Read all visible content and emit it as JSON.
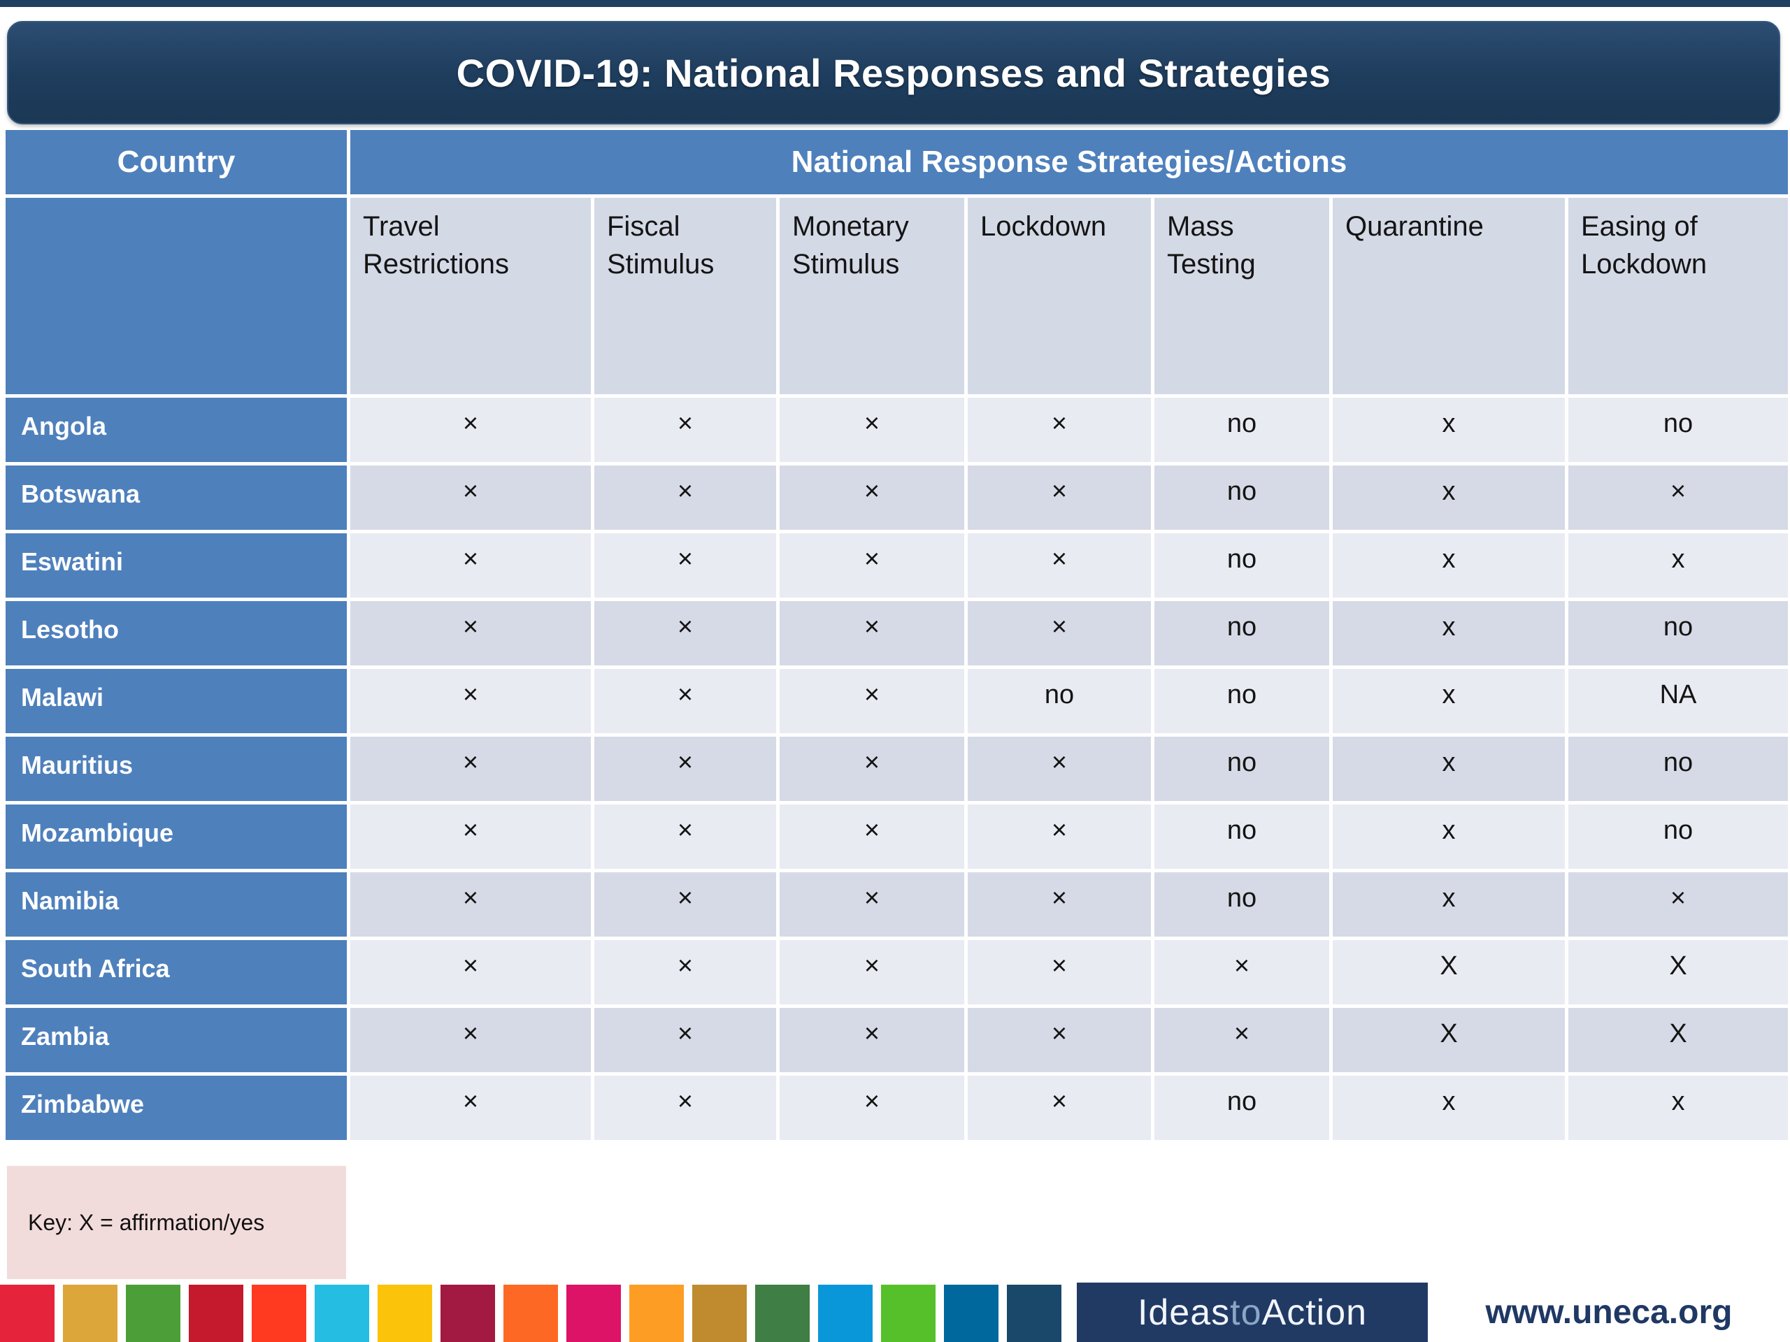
{
  "title": "COVID-19: National Responses and Strategies",
  "table": {
    "country_header": "Country",
    "group_header": "National Response Strategies/Actions",
    "columns": [
      "Travel Restrictions",
      "Fiscal Stimulus",
      "Monetary Stimulus",
      "Lockdown",
      "Mass Testing",
      "Quarantine",
      "Easing of Lockdown"
    ],
    "rows": [
      {
        "country": "Angola",
        "values": [
          "×",
          "×",
          "×",
          "×",
          "no",
          "x",
          "no"
        ]
      },
      {
        "country": "Botswana",
        "values": [
          "×",
          "×",
          "×",
          "×",
          "no",
          "x",
          "×"
        ]
      },
      {
        "country": "Eswatini",
        "values": [
          "×",
          "×",
          "×",
          "×",
          "no",
          "x",
          "x"
        ]
      },
      {
        "country": "Lesotho",
        "values": [
          "×",
          "×",
          "×",
          "×",
          "no",
          "x",
          "no"
        ]
      },
      {
        "country": "Malawi",
        "values": [
          "×",
          "×",
          "×",
          "no",
          "no",
          "x",
          "NA"
        ]
      },
      {
        "country": "Mauritius",
        "values": [
          "×",
          "×",
          "×",
          "×",
          "no",
          "x",
          "no"
        ]
      },
      {
        "country": "Mozambique",
        "values": [
          "×",
          "×",
          "×",
          "×",
          "no",
          "x",
          "no"
        ]
      },
      {
        "country": "Namibia",
        "values": [
          "×",
          "×",
          "×",
          "×",
          "no",
          "x",
          "×"
        ]
      },
      {
        "country": "South Africa",
        "values": [
          "×",
          "×",
          "×",
          "×",
          "×",
          "X",
          "X"
        ]
      },
      {
        "country": "Zambia",
        "values": [
          "×",
          "×",
          "×",
          "×",
          "×",
          "X",
          "X"
        ]
      },
      {
        "country": "Zimbabwe",
        "values": [
          "×",
          "×",
          "×",
          "×",
          "no",
          "x",
          "x"
        ]
      }
    ]
  },
  "key": {
    "label": "Key: X = affirmation/yes"
  },
  "footer": {
    "logo_part1": "Ideas",
    "logo_part2": "to",
    "logo_part3": "Action",
    "website": "www.uneca.org",
    "sdg_colors": [
      "#e5243b",
      "#dda63a",
      "#4c9f38",
      "#c5192d",
      "#ff3a21",
      "#26bde2",
      "#fcc30b",
      "#a21942",
      "#fd6925",
      "#dd1367",
      "#fd9d24",
      "#bf8b2e",
      "#3f7e44",
      "#0a97d9",
      "#56c02b",
      "#00689d",
      "#19486a"
    ]
  },
  "colors": {
    "title_bar_navy": "#1e3c5c",
    "header_blue": "#4e80bc",
    "row_light": "#e9ebf3",
    "row_dark": "#d6dae6",
    "subheader_bg": "#d4d9e6",
    "key_bg": "#f2dcdb",
    "footer_navy": "#203a64"
  }
}
